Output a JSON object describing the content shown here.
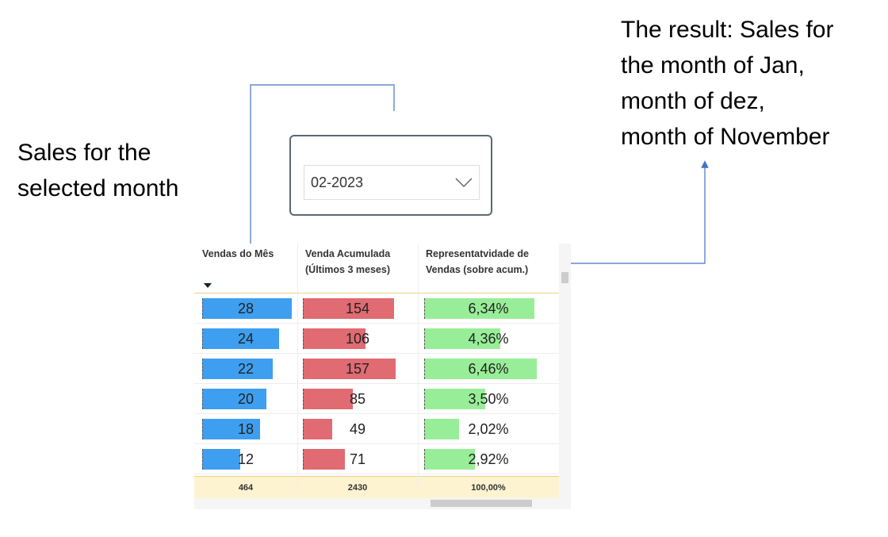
{
  "annotations": {
    "left": [
      "Sales for the",
      "selected month"
    ],
    "right": [
      "The result: Sales for",
      "the month of Jan,",
      "month of dez,",
      "month of November"
    ]
  },
  "dropdown": {
    "value": "02-2023"
  },
  "table": {
    "columns": [
      {
        "header": [
          "Vendas do Mês"
        ],
        "color": "#3e9ff0",
        "values": [
          28,
          24,
          22,
          20,
          18,
          12
        ],
        "total": "464"
      },
      {
        "header": [
          "Venda Acumulada",
          "(Últimos 3 meses)"
        ],
        "color": "#e06b72",
        "values": [
          154,
          106,
          157,
          85,
          49,
          71
        ],
        "total": "2430"
      },
      {
        "header": [
          "Representatvidade de",
          "Vendas (sobre acum.)"
        ],
        "color": "#98ee98",
        "values": [
          6.34,
          4.36,
          6.46,
          3.5,
          2.02,
          2.92
        ],
        "value_labels": [
          "6,34%",
          "4,36%",
          "6,46%",
          "3,50%",
          "2,02%",
          "2,92%"
        ],
        "total": "100,00%"
      }
    ]
  }
}
